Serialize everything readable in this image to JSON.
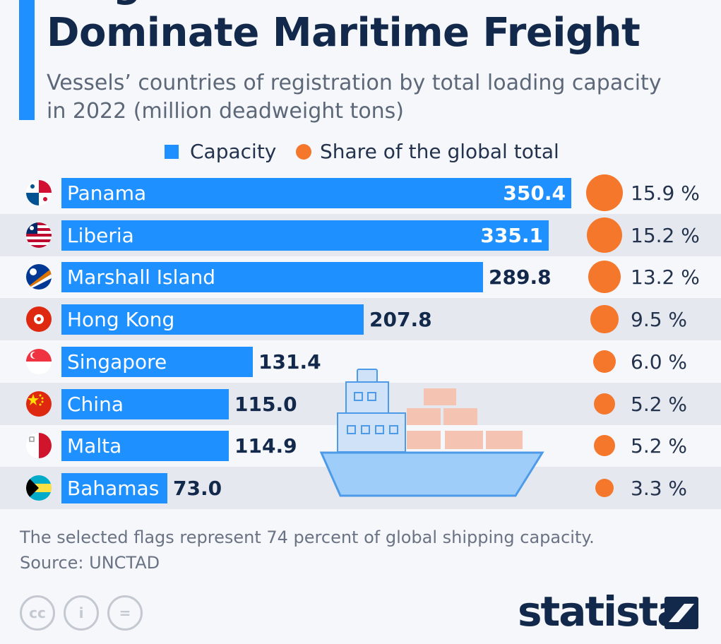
{
  "header": {
    "title_line1": "Flags of Convenience",
    "title_line2": "Dominate Maritime Freight",
    "subtitle_line1": "Vessels’ countries of registration by total loading capacity",
    "subtitle_line2": "in 2022 (million deadweight tons)"
  },
  "legend": {
    "capacity": "Capacity",
    "share": "Share of the global total"
  },
  "chart_data": {
    "type": "bar",
    "orientation": "horizontal",
    "title": "Flags of Convenience Dominate Maritime Freight",
    "subtitle": "Vessels’ countries of registration by total loading capacity in 2022 (million deadweight tons)",
    "xlim": [
      0,
      350.4
    ],
    "categories": [
      "Panama",
      "Liberia",
      "Marshall Island",
      "Hong Kong",
      "Singapore",
      "China",
      "Malta",
      "Bahamas"
    ],
    "series": [
      {
        "name": "Capacity",
        "values": [
          350.4,
          335.1,
          289.8,
          207.8,
          131.4,
          115.0,
          114.9,
          73.0
        ]
      },
      {
        "name": "Share of the global total",
        "values": [
          15.9,
          15.2,
          13.2,
          9.5,
          6.0,
          5.2,
          5.2,
          3.3
        ]
      }
    ],
    "value_labels": [
      "350.4",
      "335.1",
      "289.8",
      "207.8",
      "131.4",
      "115.0",
      "114.9",
      "73.0"
    ],
    "share_labels": [
      "15.9 %",
      "15.2 %",
      "13.2 %",
      "9.5 %",
      "6.0 %",
      "5.2 %",
      "5.2 %",
      "3.3 %"
    ],
    "flags": [
      "panama-flag-icon",
      "liberia-flag-icon",
      "marshall-islands-flag-icon",
      "hong-kong-flag-icon",
      "singapore-flag-icon",
      "china-flag-icon",
      "malta-flag-icon",
      "bahamas-flag-icon"
    ]
  },
  "footer": {
    "note": "The selected flags represent 74 percent of global shipping capacity.",
    "source": "Source: UNCTAD",
    "license_icons": [
      "cc",
      "i",
      "="
    ],
    "brand": "statista"
  },
  "colors": {
    "bar": "#1e90ff",
    "dot": "#f5772b",
    "title": "#13294b",
    "accent": "#1e90ff"
  }
}
